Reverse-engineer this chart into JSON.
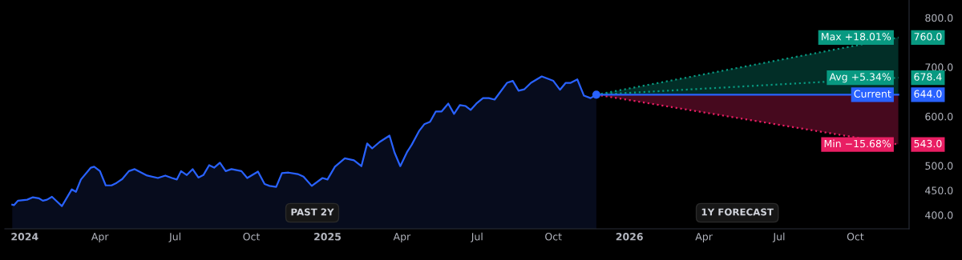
{
  "chart_data": {
    "type": "area",
    "annotations": [
      "PAST 2Y",
      "1Y FORECAST"
    ],
    "xlim": [
      "2023-12-08",
      "2026-12-05"
    ],
    "xticks": [
      {
        "value": "2024-01-01",
        "label": "2024"
      },
      {
        "value": "2024-04-01",
        "label": "Apr"
      },
      {
        "value": "2024-07-01",
        "label": "Jul"
      },
      {
        "value": "2024-10-01",
        "label": "Oct"
      },
      {
        "value": "2025-01-01",
        "label": "2025"
      },
      {
        "value": "2025-04-01",
        "label": "Apr"
      },
      {
        "value": "2025-07-01",
        "label": "Jul"
      },
      {
        "value": "2025-10-01",
        "label": "Oct"
      },
      {
        "value": "2026-01-01",
        "label": "2026"
      },
      {
        "value": "2026-04-01",
        "label": "Apr"
      },
      {
        "value": "2026-07-01",
        "label": "Jul"
      },
      {
        "value": "2026-10-01",
        "label": "Oct"
      }
    ],
    "ylim": [
      372,
      836
    ],
    "yticks": [
      {
        "value": 400,
        "label": "400.0"
      },
      {
        "value": 450,
        "label": "450.0"
      },
      {
        "value": 500,
        "label": "500.0"
      },
      {
        "value": 600,
        "label": "600.0"
      },
      {
        "value": 700,
        "label": "700.0"
      },
      {
        "value": 800,
        "label": "800.0"
      }
    ],
    "grid": false,
    "legend": "right",
    "marker": "none",
    "series": [
      {
        "color": "#2962ff",
        "line_style": "solid",
        "x": [
          "2023-12-17",
          "2023-12-19",
          "2023-12-24",
          "2024-01-04",
          "2024-01-11",
          "2024-01-18",
          "2024-01-23",
          "2024-01-28",
          "2024-02-03",
          "2024-02-15",
          "2024-02-27",
          "2024-03-03",
          "2024-03-09",
          "2024-03-21",
          "2024-03-25",
          "2024-04-01",
          "2024-04-08",
          "2024-04-15",
          "2024-04-21",
          "2024-04-28",
          "2024-05-06",
          "2024-05-13",
          "2024-05-28",
          "2024-06-10",
          "2024-06-19",
          "2024-06-27",
          "2024-07-03",
          "2024-07-08",
          "2024-07-15",
          "2024-07-22",
          "2024-07-29",
          "2024-08-04",
          "2024-08-11",
          "2024-08-17",
          "2024-08-24",
          "2024-08-31",
          "2024-09-07",
          "2024-09-19",
          "2024-09-26",
          "2024-10-09",
          "2024-10-17",
          "2024-10-23",
          "2024-10-31",
          "2024-11-07",
          "2024-11-15",
          "2024-11-26",
          "2024-12-03",
          "2024-12-13",
          "2024-12-26",
          "2025-01-01",
          "2025-01-10",
          "2025-01-22",
          "2025-02-02",
          "2025-02-11",
          "2025-02-18",
          "2025-02-24",
          "2025-03-05",
          "2025-03-17",
          "2025-03-23",
          "2025-03-30",
          "2025-04-07",
          "2025-04-13",
          "2025-04-22",
          "2025-04-28",
          "2025-05-05",
          "2025-05-12",
          "2025-05-19",
          "2025-05-27",
          "2025-06-03",
          "2025-06-10",
          "2025-06-17",
          "2025-06-23",
          "2025-06-30",
          "2025-07-08",
          "2025-07-15",
          "2025-07-22",
          "2025-08-06",
          "2025-08-13",
          "2025-08-20",
          "2025-08-27",
          "2025-09-04",
          "2025-09-17",
          "2025-10-01",
          "2025-10-09",
          "2025-10-16",
          "2025-10-22",
          "2025-10-30",
          "2025-11-07",
          "2025-11-15",
          "2025-11-22"
        ],
        "values": [
          421,
          420,
          429,
          431,
          436,
          434,
          429,
          431,
          437,
          418,
          452,
          447,
          472,
          496,
          498,
          489,
          460,
          460,
          465,
          473,
          489,
          493,
          480,
          475,
          480,
          475,
          472,
          489,
          481,
          493,
          476,
          481,
          501,
          496,
          506,
          489,
          493,
          489,
          475,
          488,
          463,
          459,
          457,
          485,
          486,
          483,
          478,
          459,
          475,
          472,
          498,
          515,
          511,
          499,
          545,
          535,
          548,
          561,
          527,
          499,
          527,
          543,
          571,
          584,
          589,
          610,
          610,
          626,
          605,
          623,
          621,
          613,
          626,
          637,
          637,
          634,
          668,
          672,
          652,
          655,
          668,
          681,
          672,
          654,
          668,
          668,
          675,
          642,
          637,
          644
        ]
      },
      {
        "type": "scatter",
        "color": "#2962ff",
        "marker": "circle",
        "x": [
          "2025-11-22"
        ],
        "values": [
          644
        ]
      },
      {
        "type": "line",
        "name": "Max +18.01%",
        "color": "#089981",
        "line_style": "dotted",
        "x": [
          "2025-11-22",
          "2026-11-22"
        ],
        "values": [
          644,
          760
        ],
        "lower": [
          644,
          644
        ],
        "upper": [
          644,
          760
        ],
        "value_labels": [
          null,
          "760.0"
        ]
      },
      {
        "type": "line",
        "name": "Avg +5.34%",
        "color": "#089981",
        "line_style": "dotted",
        "x": [
          "2025-11-22",
          "2026-11-22"
        ],
        "values": [
          644,
          678.4
        ],
        "value_labels": [
          null,
          "678.4"
        ]
      },
      {
        "type": "line",
        "name": "Min −15.68%",
        "color": "#e91e63",
        "line_style": "dotted",
        "x": [
          "2025-11-22",
          "2026-11-22"
        ],
        "values": [
          644,
          543
        ],
        "lower": [
          644,
          543
        ],
        "upper": [
          644,
          644
        ],
        "value_labels": [
          null,
          "543.0"
        ]
      },
      {
        "type": "line",
        "name": "Current",
        "color": "#2962ff",
        "line_style": "solid",
        "x": [
          "2025-11-22",
          "2026-11-22"
        ],
        "values": [
          644,
          644
        ],
        "value_labels": [
          null,
          "644.0"
        ]
      }
    ]
  }
}
